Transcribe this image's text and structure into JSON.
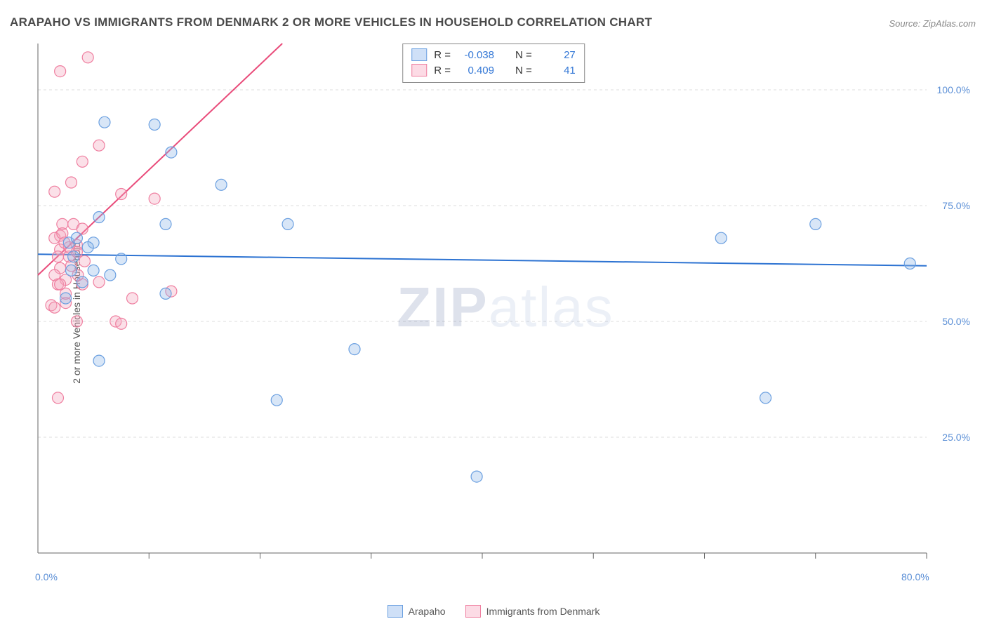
{
  "title": "ARAPAHO VS IMMIGRANTS FROM DENMARK 2 OR MORE VEHICLES IN HOUSEHOLD CORRELATION CHART",
  "source": "Source: ZipAtlas.com",
  "watermark": "ZIPatlas",
  "y_axis_title": "2 or more Vehicles in Household",
  "chart": {
    "type": "scatter",
    "xlim": [
      0,
      80
    ],
    "ylim": [
      0,
      110
    ],
    "x_ticks": [
      10,
      20,
      30,
      40,
      50,
      60,
      70,
      80
    ],
    "y_gridlines": [
      25,
      50,
      75,
      100
    ],
    "y_tick_labels": [
      "25.0%",
      "50.0%",
      "75.0%",
      "100.0%"
    ],
    "x_axis_end_labels": {
      "left": "0.0%",
      "right": "80.0%"
    },
    "grid_color": "#dcdcdc",
    "axis_color": "#666666",
    "background_color": "#ffffff",
    "label_fontsize": 14,
    "label_color": "#5b8fd6",
    "series": [
      {
        "name": "Arapaho",
        "marker_color": "#8fb8e8",
        "marker_fill_opacity": 0.35,
        "marker_stroke": "#6a9fe0",
        "marker_radius": 8,
        "trend_color": "#2d73d2",
        "trend_width": 2,
        "trend": {
          "x1": 0,
          "y1": 64.5,
          "x2": 80,
          "y2": 62.0
        },
        "R": "-0.038",
        "N": "27",
        "points": [
          [
            6.0,
            93
          ],
          [
            10.5,
            92.5
          ],
          [
            12,
            86.5
          ],
          [
            16.5,
            79.5
          ],
          [
            22.5,
            71
          ],
          [
            5.5,
            72.5
          ],
          [
            11.5,
            71
          ],
          [
            2.8,
            67
          ],
          [
            3.5,
            68
          ],
          [
            7.5,
            63.5
          ],
          [
            5.0,
            61
          ],
          [
            5.0,
            67
          ],
          [
            3.0,
            61
          ],
          [
            4.0,
            58.5
          ],
          [
            2.5,
            55
          ],
          [
            11.5,
            56
          ],
          [
            28.5,
            44
          ],
          [
            5.5,
            41.5
          ],
          [
            21.5,
            33
          ],
          [
            39.5,
            16.5
          ],
          [
            61.5,
            68
          ],
          [
            70,
            71
          ],
          [
            78.5,
            62.5
          ],
          [
            65.5,
            33.5
          ],
          [
            3.2,
            64
          ],
          [
            4.5,
            66
          ],
          [
            6.5,
            60
          ]
        ]
      },
      {
        "name": "Immigrants from Denmark",
        "marker_color": "#f4a6bd",
        "marker_fill_opacity": 0.35,
        "marker_stroke": "#ef7fa0",
        "marker_radius": 8,
        "trend_color": "#e94b7a",
        "trend_width": 2,
        "trend": {
          "x1": 0,
          "y1": 60,
          "x2": 22,
          "y2": 110
        },
        "R": "0.409",
        "N": "41",
        "points": [
          [
            4.5,
            107
          ],
          [
            2.0,
            104
          ],
          [
            5.5,
            88
          ],
          [
            4.0,
            84.5
          ],
          [
            3.0,
            80
          ],
          [
            1.5,
            78
          ],
          [
            7.5,
            77.5
          ],
          [
            10.5,
            76.5
          ],
          [
            2.2,
            71
          ],
          [
            3.2,
            71
          ],
          [
            2.0,
            68.5
          ],
          [
            1.5,
            68
          ],
          [
            3.5,
            66.5
          ],
          [
            2.0,
            65.5
          ],
          [
            2.8,
            64
          ],
          [
            3.5,
            65
          ],
          [
            4.2,
            63
          ],
          [
            2.0,
            61.5
          ],
          [
            1.5,
            60
          ],
          [
            2.5,
            59
          ],
          [
            1.8,
            58
          ],
          [
            1.2,
            53.5
          ],
          [
            4.0,
            58
          ],
          [
            5.5,
            58.5
          ],
          [
            8.5,
            55
          ],
          [
            1.5,
            53
          ],
          [
            2.5,
            54
          ],
          [
            3.5,
            50
          ],
          [
            7.0,
            50
          ],
          [
            12,
            56.5
          ],
          [
            7.5,
            49.5
          ],
          [
            1.8,
            33.5
          ],
          [
            2.2,
            69
          ],
          [
            2.8,
            66
          ],
          [
            3.0,
            62
          ],
          [
            3.6,
            60
          ],
          [
            2.5,
            56
          ],
          [
            1.8,
            64
          ],
          [
            2.4,
            67
          ],
          [
            4.0,
            70
          ],
          [
            2.0,
            58
          ]
        ]
      }
    ]
  },
  "top_legend": {
    "rows": [
      {
        "swatch_fill": "#cfe0f7",
        "swatch_stroke": "#6a9fe0",
        "r_label": "R =",
        "r_val": "-0.038",
        "n_label": "N =",
        "n_val": "27"
      },
      {
        "swatch_fill": "#fcdbe5",
        "swatch_stroke": "#ef7fa0",
        "r_label": "R =",
        "r_val": "0.409",
        "n_label": "N =",
        "n_val": "41"
      }
    ]
  },
  "bottom_legend": {
    "items": [
      {
        "label": "Arapaho",
        "fill": "#cfe0f7",
        "stroke": "#6a9fe0"
      },
      {
        "label": "Immigrants from Denmark",
        "fill": "#fcdbe5",
        "stroke": "#ef7fa0"
      }
    ]
  }
}
